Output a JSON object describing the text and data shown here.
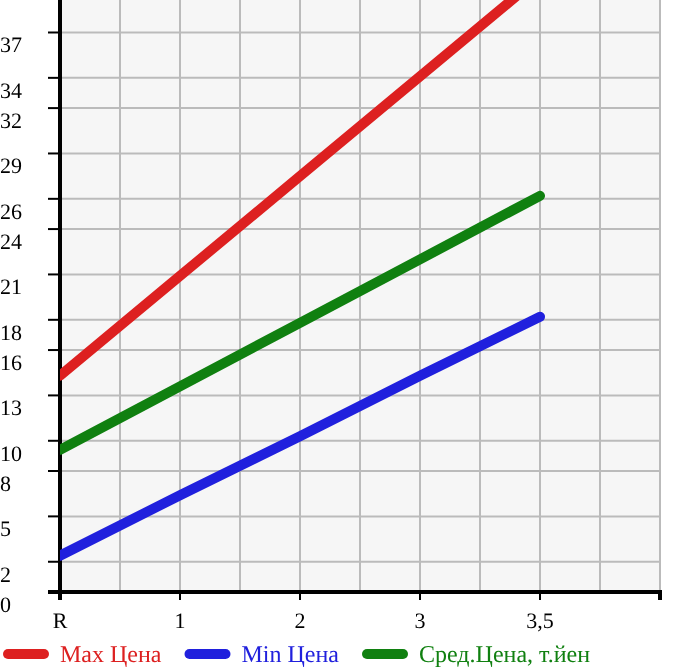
{
  "chart_data": {
    "type": "line",
    "categories": [
      "R",
      "1",
      "2",
      "3",
      "3,5"
    ],
    "series": [
      {
        "name": "Max Цена",
        "color": "#dd2020",
        "values": [
          14.3,
          20.9,
          27.5,
          34.1,
          40.7
        ]
      },
      {
        "name": "Min Цена",
        "color": "#2020dd",
        "values": [
          2.4,
          6.4,
          10.3,
          14.3,
          18.2
        ]
      },
      {
        "name": "Сред.Цена, т.йен",
        "color": "#108010",
        "values": [
          9.4,
          13.6,
          17.8,
          22.0,
          26.2
        ]
      }
    ],
    "ylim": [
      0,
      41
    ],
    "yticks": [
      0,
      2,
      5,
      8,
      10,
      13,
      16,
      18,
      21,
      24,
      26,
      29,
      32,
      34,
      37
    ],
    "grid": true,
    "legend": "bottom",
    "marker": "none",
    "line_style": "solid"
  }
}
